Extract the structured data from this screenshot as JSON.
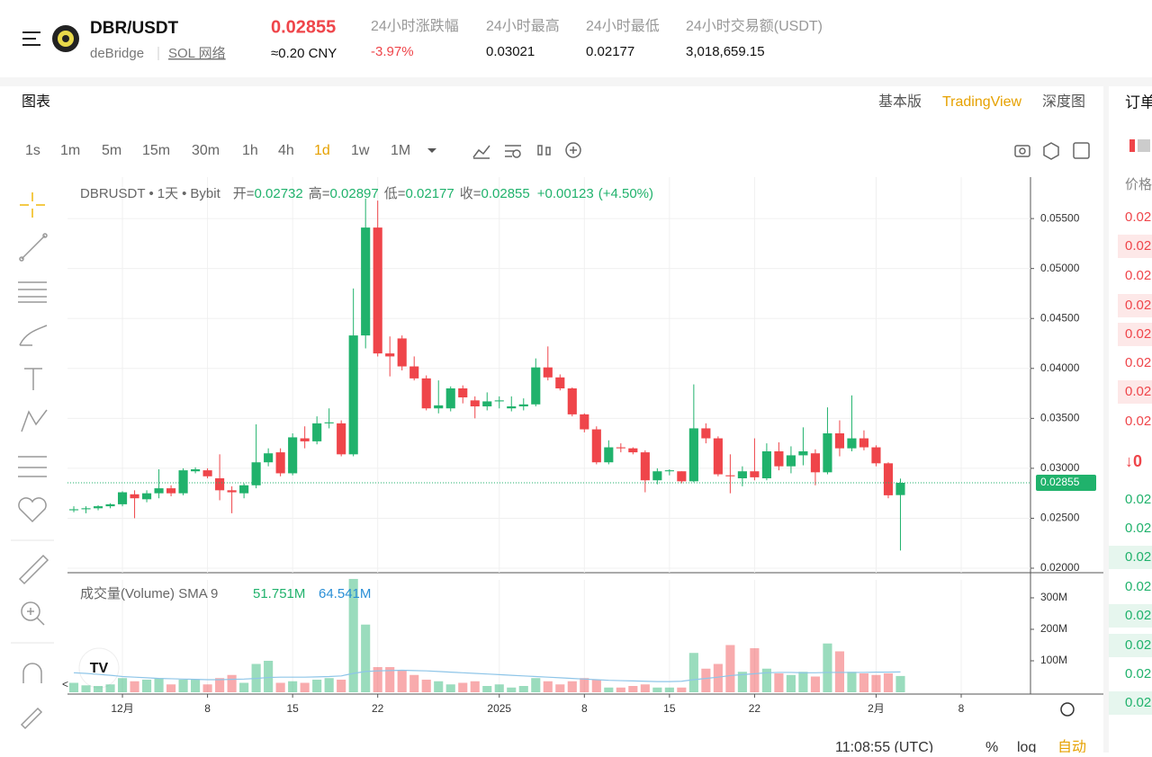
{
  "header": {
    "pair": "DBR/USDT",
    "project": "deBridge",
    "network": "SOL 网络",
    "price": "0.02855",
    "price_cny": "≈0.20 CNY",
    "stats": [
      {
        "label": "24小时涨跌幅",
        "value": "-3.97%"
      },
      {
        "label": "24小时最高",
        "value": "0.03021"
      },
      {
        "label": "24小时最低",
        "value": "0.02177"
      },
      {
        "label": "24小时交易额(USDT)",
        "value": "3,018,659.15"
      }
    ]
  },
  "tabs": {
    "title": "图表",
    "views": [
      "基本版",
      "TradingView",
      "深度图"
    ],
    "active_view": 1
  },
  "timeframes": {
    "items": [
      "1s",
      "1m",
      "5m",
      "15m",
      "30m",
      "1h",
      "4h",
      "1d",
      "1w",
      "1M"
    ],
    "active": 7
  },
  "chart_data": {
    "type": "candlestick",
    "legend": {
      "symbol": "DBRUSDT",
      "interval": "1天",
      "exchange": "Bybit",
      "open_label": "开=",
      "open": "0.02732",
      "high_label": "高=",
      "high": "0.02897",
      "low_label": "低=",
      "low": "0.02177",
      "close_label": "收=",
      "close": "0.02855",
      "change": "+0.00123",
      "change_pct": "(+4.50%)"
    },
    "up_color": "#20b26c",
    "down_color": "#ef454a",
    "xlim": [
      -0.52,
      78.7
    ],
    "xticks": [
      {
        "value": 4,
        "label": "12月"
      },
      {
        "value": 11,
        "label": "8"
      },
      {
        "value": 18,
        "label": "15"
      },
      {
        "value": 25,
        "label": "22"
      },
      {
        "value": 35,
        "label": "2025"
      },
      {
        "value": 42,
        "label": "8"
      },
      {
        "value": 49,
        "label": "15"
      },
      {
        "value": 56,
        "label": "22"
      },
      {
        "value": 66,
        "label": "2月"
      },
      {
        "value": 73,
        "label": "8"
      }
    ],
    "ylim": [
      0.01955,
      0.05915
    ],
    "yticks": [
      {
        "value": 0.02,
        "label": "0.02000"
      },
      {
        "value": 0.025,
        "label": "0.02500"
      },
      {
        "value": 0.03,
        "label": "0.03000"
      },
      {
        "value": 0.035,
        "label": "0.03500"
      },
      {
        "value": 0.04,
        "label": "0.04000"
      },
      {
        "value": 0.045,
        "label": "0.04500"
      },
      {
        "value": 0.05,
        "label": "0.05000"
      },
      {
        "value": 0.055,
        "label": "0.05500"
      }
    ],
    "last_price": {
      "value": 0.02855,
      "label": "0.02855"
    },
    "candles": [
      {
        "open": 0.0258,
        "high": 0.0262,
        "low": 0.0256,
        "close": 0.0259
      },
      {
        "open": 0.0259,
        "high": 0.0262,
        "low": 0.0255,
        "close": 0.026
      },
      {
        "open": 0.026,
        "high": 0.0263,
        "low": 0.0258,
        "close": 0.0262
      },
      {
        "open": 0.0262,
        "high": 0.0265,
        "low": 0.026,
        "close": 0.0264
      },
      {
        "open": 0.0264,
        "high": 0.0277,
        "low": 0.0262,
        "close": 0.0276
      },
      {
        "open": 0.0274,
        "high": 0.0278,
        "low": 0.025,
        "close": 0.027
      },
      {
        "open": 0.0269,
        "high": 0.0278,
        "low": 0.0266,
        "close": 0.0275
      },
      {
        "open": 0.0275,
        "high": 0.0299,
        "low": 0.027,
        "close": 0.028
      },
      {
        "open": 0.028,
        "high": 0.0283,
        "low": 0.0272,
        "close": 0.0275
      },
      {
        "open": 0.0275,
        "high": 0.03,
        "low": 0.0273,
        "close": 0.0298
      },
      {
        "open": 0.0297,
        "high": 0.0301,
        "low": 0.0295,
        "close": 0.0299
      },
      {
        "open": 0.0298,
        "high": 0.03,
        "low": 0.029,
        "close": 0.0292
      },
      {
        "open": 0.029,
        "high": 0.0314,
        "low": 0.0268,
        "close": 0.0278
      },
      {
        "open": 0.0278,
        "high": 0.0282,
        "low": 0.0255,
        "close": 0.0276
      },
      {
        "open": 0.0275,
        "high": 0.0285,
        "low": 0.027,
        "close": 0.0283
      },
      {
        "open": 0.0283,
        "high": 0.0344,
        "low": 0.028,
        "close": 0.0306
      },
      {
        "open": 0.0306,
        "high": 0.032,
        "low": 0.0302,
        "close": 0.0315
      },
      {
        "open": 0.0316,
        "high": 0.032,
        "low": 0.0292,
        "close": 0.0295
      },
      {
        "open": 0.0295,
        "high": 0.0335,
        "low": 0.0293,
        "close": 0.0331
      },
      {
        "open": 0.033,
        "high": 0.0342,
        "low": 0.032,
        "close": 0.0327
      },
      {
        "open": 0.0327,
        "high": 0.0352,
        "low": 0.0324,
        "close": 0.0345
      },
      {
        "open": 0.0345,
        "high": 0.036,
        "low": 0.034,
        "close": 0.0346
      },
      {
        "open": 0.0345,
        "high": 0.0348,
        "low": 0.0312,
        "close": 0.0314
      },
      {
        "open": 0.0314,
        "high": 0.048,
        "low": 0.0312,
        "close": 0.0433
      },
      {
        "open": 0.0433,
        "high": 0.057,
        "low": 0.042,
        "close": 0.0541
      },
      {
        "open": 0.0541,
        "high": 0.0568,
        "low": 0.0412,
        "close": 0.0415
      },
      {
        "open": 0.0415,
        "high": 0.0432,
        "low": 0.0392,
        "close": 0.0412
      },
      {
        "open": 0.043,
        "high": 0.0433,
        "low": 0.0398,
        "close": 0.0402
      },
      {
        "open": 0.0402,
        "high": 0.0412,
        "low": 0.0388,
        "close": 0.039
      },
      {
        "open": 0.039,
        "high": 0.0393,
        "low": 0.0358,
        "close": 0.036
      },
      {
        "open": 0.036,
        "high": 0.0388,
        "low": 0.0355,
        "close": 0.0363
      },
      {
        "open": 0.036,
        "high": 0.0382,
        "low": 0.0357,
        "close": 0.038
      },
      {
        "open": 0.038,
        "high": 0.0383,
        "low": 0.0365,
        "close": 0.0371
      },
      {
        "open": 0.0368,
        "high": 0.0372,
        "low": 0.035,
        "close": 0.0362
      },
      {
        "open": 0.0362,
        "high": 0.0376,
        "low": 0.0358,
        "close": 0.0367
      },
      {
        "open": 0.0367,
        "high": 0.0372,
        "low": 0.036,
        "close": 0.0368
      },
      {
        "open": 0.036,
        "high": 0.0372,
        "low": 0.0357,
        "close": 0.0362
      },
      {
        "open": 0.0362,
        "high": 0.037,
        "low": 0.0358,
        "close": 0.0364
      },
      {
        "open": 0.0364,
        "high": 0.041,
        "low": 0.0362,
        "close": 0.0401
      },
      {
        "open": 0.0401,
        "high": 0.0422,
        "low": 0.0388,
        "close": 0.0391
      },
      {
        "open": 0.0391,
        "high": 0.0394,
        "low": 0.0378,
        "close": 0.038
      },
      {
        "open": 0.038,
        "high": 0.0381,
        "low": 0.0352,
        "close": 0.0354
      },
      {
        "open": 0.0354,
        "high": 0.0355,
        "low": 0.0336,
        "close": 0.0339
      },
      {
        "open": 0.0339,
        "high": 0.0342,
        "low": 0.0304,
        "close": 0.0306
      },
      {
        "open": 0.0306,
        "high": 0.0328,
        "low": 0.0304,
        "close": 0.0321
      },
      {
        "open": 0.0321,
        "high": 0.0325,
        "low": 0.0316,
        "close": 0.032
      },
      {
        "open": 0.032,
        "high": 0.0321,
        "low": 0.0314,
        "close": 0.0316
      },
      {
        "open": 0.0316,
        "high": 0.0318,
        "low": 0.0276,
        "close": 0.0288
      },
      {
        "open": 0.0288,
        "high": 0.03,
        "low": 0.0284,
        "close": 0.0297
      },
      {
        "open": 0.0297,
        "high": 0.0299,
        "low": 0.0293,
        "close": 0.0298
      },
      {
        "open": 0.0297,
        "high": 0.0297,
        "low": 0.0285,
        "close": 0.0287
      },
      {
        "open": 0.0287,
        "high": 0.0384,
        "low": 0.0286,
        "close": 0.034
      },
      {
        "open": 0.034,
        "high": 0.0345,
        "low": 0.0325,
        "close": 0.033
      },
      {
        "open": 0.033,
        "high": 0.0332,
        "low": 0.0292,
        "close": 0.0294
      },
      {
        "open": 0.0293,
        "high": 0.0314,
        "low": 0.0275,
        "close": 0.0292
      },
      {
        "open": 0.029,
        "high": 0.0302,
        "low": 0.0282,
        "close": 0.0297
      },
      {
        "open": 0.0297,
        "high": 0.033,
        "low": 0.0288,
        "close": 0.0291
      },
      {
        "open": 0.029,
        "high": 0.0325,
        "low": 0.0288,
        "close": 0.0317
      },
      {
        "open": 0.0317,
        "high": 0.0326,
        "low": 0.0298,
        "close": 0.0302
      },
      {
        "open": 0.0302,
        "high": 0.0322,
        "low": 0.0295,
        "close": 0.0313
      },
      {
        "open": 0.0313,
        "high": 0.0341,
        "low": 0.0303,
        "close": 0.0317
      },
      {
        "open": 0.0315,
        "high": 0.0319,
        "low": 0.0283,
        "close": 0.0296
      },
      {
        "open": 0.0296,
        "high": 0.0361,
        "low": 0.0294,
        "close": 0.0335
      },
      {
        "open": 0.0335,
        "high": 0.0348,
        "low": 0.0312,
        "close": 0.032
      },
      {
        "open": 0.032,
        "high": 0.0373,
        "low": 0.0317,
        "close": 0.033
      },
      {
        "open": 0.033,
        "high": 0.0338,
        "low": 0.0318,
        "close": 0.0321
      },
      {
        "open": 0.0321,
        "high": 0.0323,
        "low": 0.0302,
        "close": 0.0305
      },
      {
        "open": 0.0305,
        "high": 0.0306,
        "low": 0.027,
        "close": 0.0273
      },
      {
        "open": 0.02732,
        "high": 0.02897,
        "low": 0.02177,
        "close": 0.02855
      }
    ],
    "volume": {
      "title": "成交量(Volume) SMA 9",
      "value_label": "51.751M",
      "sma_label": "64.541M",
      "sma_color": "#8ec5e8",
      "ylim": [
        0,
        357
      ],
      "yticks": [
        {
          "value": 100,
          "label": "100M"
        },
        {
          "value": 200,
          "label": "200M"
        },
        {
          "value": 300,
          "label": "300M"
        }
      ],
      "values": [
        30,
        22,
        20,
        25,
        45,
        35,
        40,
        45,
        25,
        40,
        40,
        25,
        45,
        55,
        30,
        90,
        100,
        30,
        35,
        30,
        40,
        45,
        40,
        360,
        215,
        80,
        80,
        70,
        55,
        40,
        35,
        25,
        30,
        35,
        20,
        25,
        15,
        20,
        45,
        35,
        25,
        35,
        45,
        40,
        15,
        15,
        20,
        25,
        15,
        15,
        15,
        125,
        75,
        90,
        150,
        65,
        140,
        75,
        60,
        55,
        65,
        50,
        155,
        130,
        65,
        60,
        55,
        60,
        51.751
      ],
      "sma": [
        62,
        60,
        57,
        54,
        50,
        48,
        46,
        44,
        43,
        42,
        41,
        40,
        40,
        41,
        42,
        44,
        47,
        48,
        48,
        48,
        49,
        50,
        52,
        60,
        66,
        68,
        69,
        70,
        69,
        68,
        66,
        64,
        62,
        60,
        58,
        56,
        54,
        52,
        50,
        48,
        46,
        44,
        42,
        40,
        38,
        37,
        36,
        35,
        34,
        34,
        35,
        40,
        44,
        48,
        53,
        56,
        59,
        62,
        63,
        63,
        62,
        62,
        63,
        63,
        63,
        63,
        64,
        64,
        64.541
      ]
    }
  },
  "order_book": {
    "title": "订单",
    "price_header": "价格",
    "asks": [
      "0.02",
      "0.02",
      "0.02",
      "0.02",
      "0.02",
      "0.02",
      "0.02",
      "0.02"
    ],
    "mid": "↓0",
    "bids": [
      "0.02",
      "0.02",
      "0.02",
      "0.02",
      "0.02",
      "0.02",
      "0.02",
      "0.02"
    ]
  },
  "footer": {
    "time": "11:08:55 (UTC)",
    "percent": "%",
    "log": "log",
    "auto": "自动"
  }
}
